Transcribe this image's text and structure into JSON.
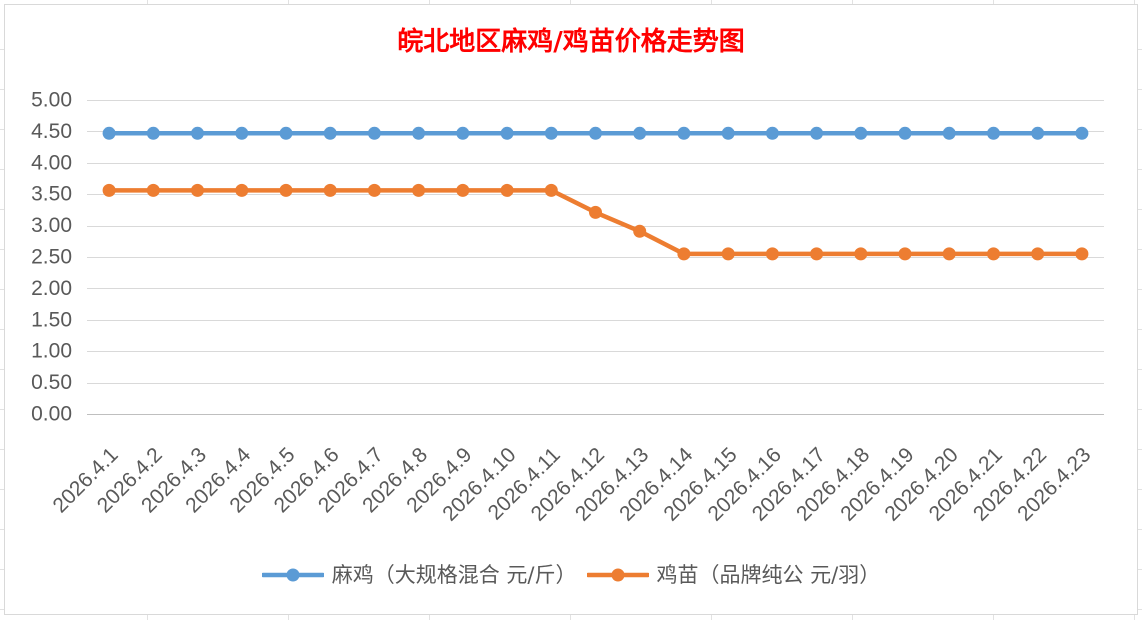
{
  "chart_data": {
    "type": "line",
    "title": "皖北地区麻鸡/鸡苗价格走势图",
    "title_color": "#FF0000",
    "categories": [
      "2026.4.1",
      "2026.4.2",
      "2026.4.3",
      "2026.4.4",
      "2026.4.5",
      "2026.4.6",
      "2026.4.7",
      "2026.4.8",
      "2026.4.9",
      "2026.4.10",
      "2026.4.11",
      "2026.4.12",
      "2026.4.13",
      "2026.4.14",
      "2026.4.15",
      "2026.4.16",
      "2026.4.17",
      "2026.4.18",
      "2026.4.19",
      "2026.4.20",
      "2026.4.21",
      "2026.4.22",
      "2026.4.23"
    ],
    "ylim": [
      0,
      5
    ],
    "y_tick_labels": [
      "0.00",
      "0.50",
      "1.00",
      "1.50",
      "2.00",
      "2.50",
      "3.00",
      "3.50",
      "4.00",
      "4.50",
      "5.00"
    ],
    "series": [
      {
        "name": "麻鸡（大规格混合 元/斤）",
        "color": "#5B9BD5",
        "values": [
          4.47,
          4.47,
          4.47,
          4.47,
          4.47,
          4.47,
          4.47,
          4.47,
          4.47,
          4.47,
          4.47,
          4.47,
          4.47,
          4.47,
          4.47,
          4.47,
          4.47,
          4.47,
          4.47,
          4.47,
          4.47,
          4.47,
          4.47
        ]
      },
      {
        "name": "鸡苗（品牌纯公 元/羽）",
        "color": "#ED7D31",
        "values": [
          3.56,
          3.56,
          3.56,
          3.56,
          3.56,
          3.56,
          3.56,
          3.56,
          3.56,
          3.56,
          3.56,
          3.21,
          2.91,
          2.55,
          2.55,
          2.55,
          2.55,
          2.55,
          2.55,
          2.55,
          2.55,
          2.55,
          2.55
        ]
      }
    ],
    "grid": true,
    "legend_position": "bottom"
  }
}
